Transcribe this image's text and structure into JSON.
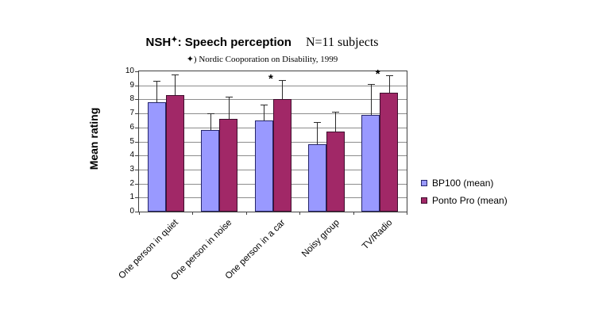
{
  "title": {
    "prefix": "NSH",
    "superscript": "✦",
    "main": ": Speech perception",
    "subjects": "N=11 subjects"
  },
  "footnote": "✦) Nordic Cooporation on Disability, 1999",
  "chart_data": {
    "type": "bar",
    "title": "NSH✦: Speech perception — N=11 subjects",
    "categories": [
      "One person in quiet",
      "One person in noise",
      "One person in a car",
      "Noisy group",
      "TV/Radio"
    ],
    "series": [
      {
        "name": "BP100 (mean)",
        "values": [
          7.8,
          5.8,
          6.5,
          4.8,
          6.9
        ],
        "error_upper": [
          1.5,
          1.2,
          1.1,
          1.6,
          2.2
        ],
        "fill": "#9999FF",
        "border": "#26266B"
      },
      {
        "name": "Ponto Pro (mean)",
        "values": [
          8.3,
          6.6,
          8.0,
          5.7,
          8.5
        ],
        "error_upper": [
          1.5,
          1.6,
          1.4,
          1.4,
          1.2
        ],
        "fill": "#A12867",
        "border": "#3F0F2E"
      }
    ],
    "significance": {
      "series_index": 1,
      "category_indices": [
        2,
        4
      ],
      "symbol": "*"
    },
    "xlabel": "",
    "ylabel": "Mean rating",
    "ylim": [
      0,
      10
    ],
    "ytick_step": 1,
    "grid": true,
    "legend_position": "right",
    "style": {
      "gridline": "#8C8C8C",
      "axis": "#404040",
      "error_bar": "#2B2B2B",
      "background": "#FFFFFF"
    }
  }
}
